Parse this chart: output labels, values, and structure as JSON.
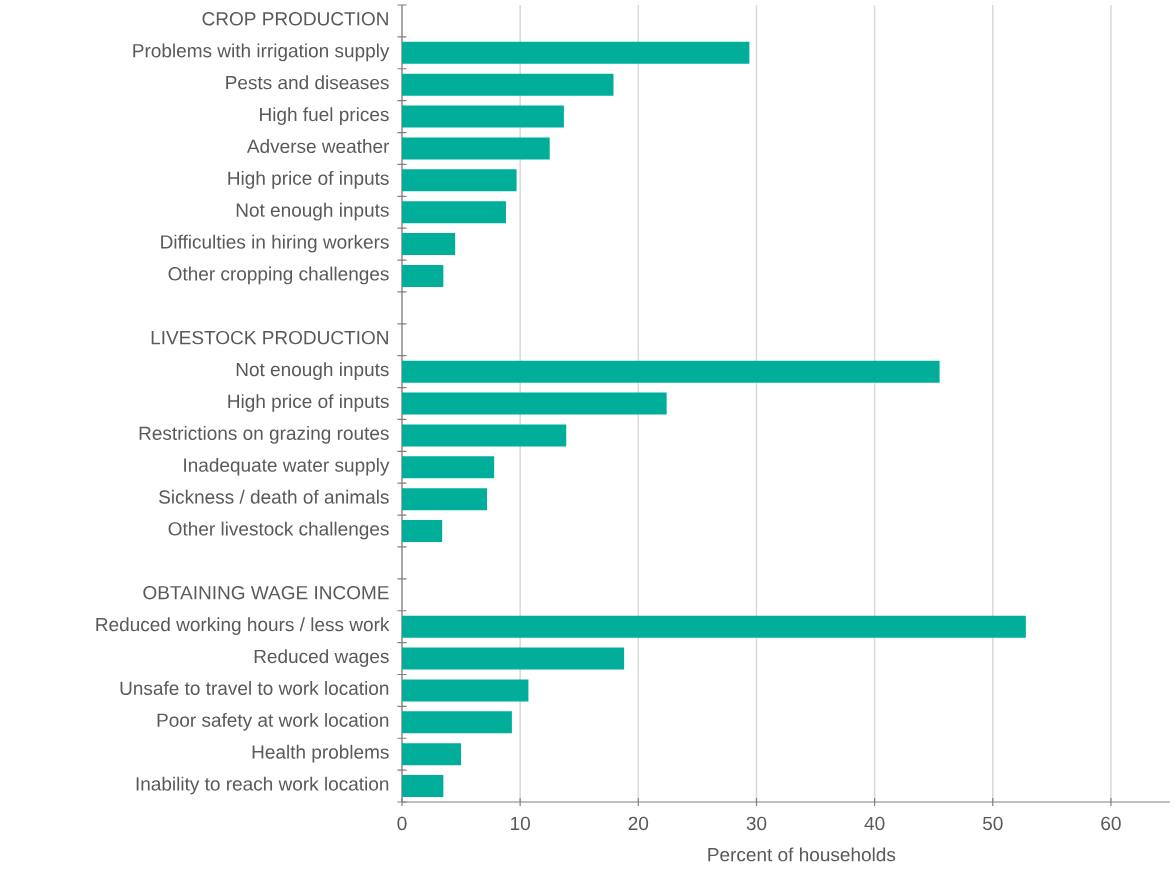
{
  "chart_data": {
    "type": "bar",
    "orientation": "horizontal",
    "xlabel": "Percent of households",
    "categories": [
      "CROP PRODUCTION",
      "Problems with irrigation supply",
      "Pests and diseases",
      "High fuel prices",
      "Adverse weather",
      "High price of inputs",
      "Not enough inputs",
      "Difficulties in hiring workers",
      "Other cropping challenges",
      null,
      "LIVESTOCK PRODUCTION",
      "Not enough inputs",
      "High price of inputs",
      "Restrictions on grazing routes",
      "Inadequate water supply",
      "Sickness / death of animals",
      "Other livestock challenges",
      null,
      "OBTAINING WAGE INCOME",
      "Reduced working hours / less work",
      "Reduced wages",
      "Unsafe to travel to work location",
      "Poor safety at work location",
      "Health problems",
      "Inability to reach work location"
    ],
    "values": [
      null,
      29.4,
      17.9,
      13.7,
      12.5,
      9.7,
      8.8,
      4.5,
      3.5,
      null,
      null,
      45.5,
      22.4,
      13.9,
      7.8,
      7.2,
      3.4,
      null,
      null,
      52.8,
      18.8,
      10.7,
      9.3,
      5.0,
      3.5
    ],
    "color": "#00ae99",
    "xlim": [
      0,
      65
    ],
    "xticks": [
      0,
      10,
      20,
      30,
      40,
      50,
      60
    ],
    "grid": "x"
  }
}
